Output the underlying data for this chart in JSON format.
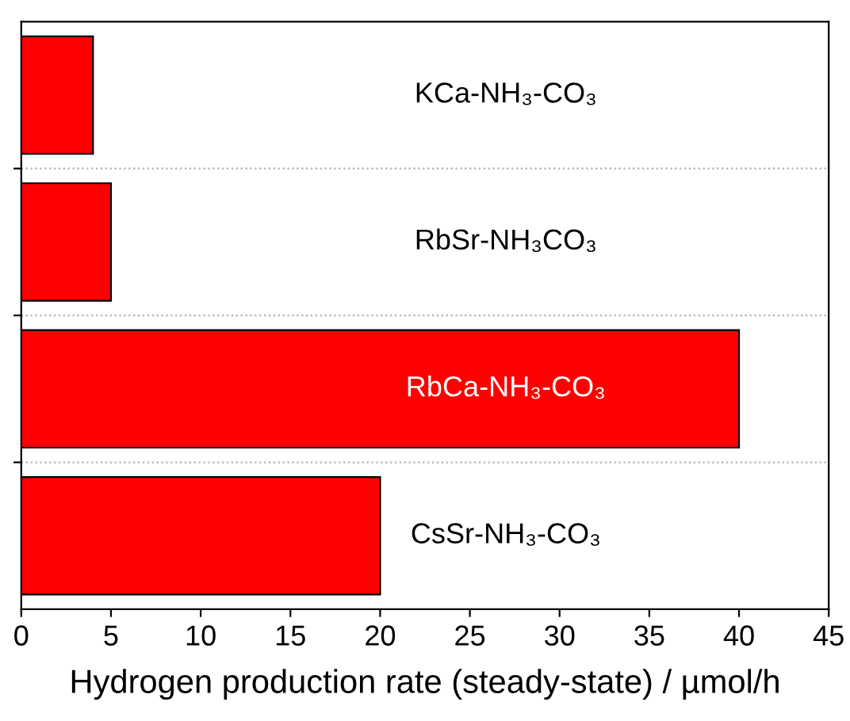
{
  "chart_data": {
    "type": "bar",
    "orientation": "horizontal",
    "xlabel": "Hydrogen production rate (steady-state) / µmol/h",
    "categories": [
      "KCa-NH₃-CO₃",
      "RbSr-NH₃CO₃",
      "RbCa-NH₃-CO₃",
      "CsSr-NH₃-CO₃"
    ],
    "values": [
      4,
      5,
      40,
      20
    ],
    "color": "#ff0000",
    "xlim": [
      0,
      45
    ],
    "xticks": [
      0,
      5,
      10,
      15,
      20,
      25,
      30,
      35,
      40,
      45
    ],
    "grid": "y",
    "tick_labels": "x"
  }
}
